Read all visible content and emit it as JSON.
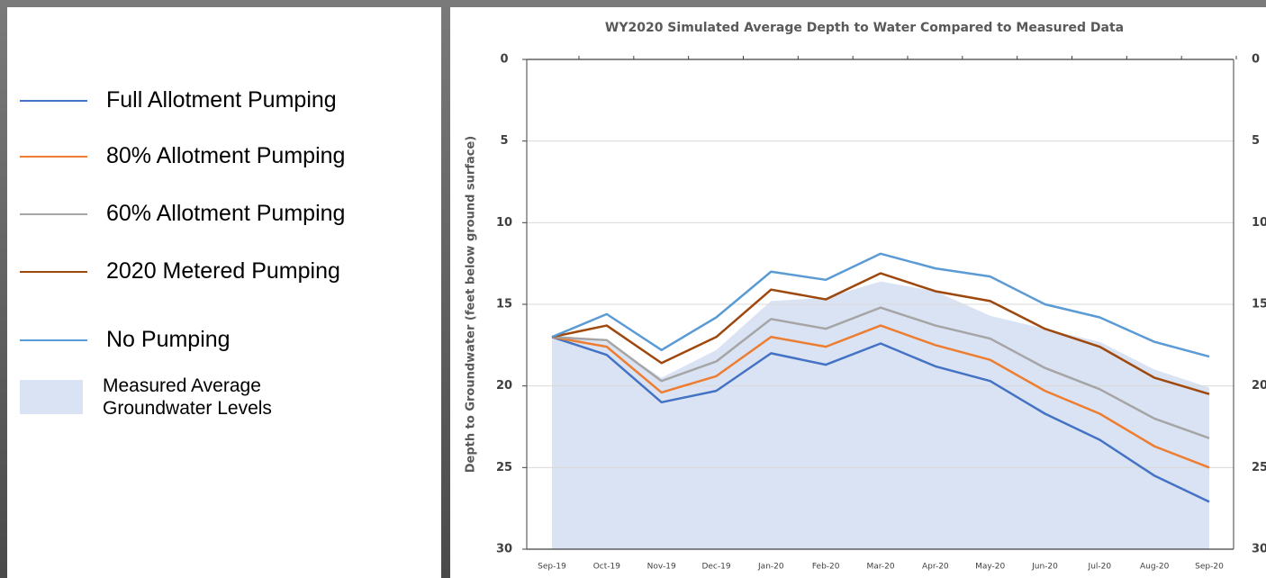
{
  "chart_data": {
    "type": "line",
    "title": "WY2020 Simulated Average Depth to Water Compared to Measured Data",
    "y_label": "Depth to Groundwater (feet below ground surface)",
    "categories": [
      "Sep-19",
      "Oct-19",
      "Nov-19",
      "Dec-19",
      "Jan-20",
      "Feb-20",
      "Mar-20",
      "Apr-20",
      "May-20",
      "Jun-20",
      "Jul-20",
      "Aug-20",
      "Sep-20"
    ],
    "ylim": [
      30,
      0
    ],
    "yticks": [
      0,
      5,
      10,
      15,
      20,
      25,
      30
    ],
    "grid": true,
    "right_axis": true,
    "series": [
      {
        "name": "Full Allotment Pumping",
        "color": "#4472c4",
        "values": [
          17.0,
          18.1,
          21.0,
          20.3,
          18.0,
          18.7,
          17.4,
          18.8,
          19.7,
          21.7,
          23.3,
          25.5,
          27.1
        ]
      },
      {
        "name": "80% Allotment Pumping",
        "color": "#ed7d31",
        "values": [
          17.0,
          17.6,
          20.4,
          19.4,
          17.0,
          17.6,
          16.3,
          17.5,
          18.4,
          20.3,
          21.7,
          23.7,
          25.0
        ]
      },
      {
        "name": "60% Allotment Pumping",
        "color": "#a5a5a5",
        "values": [
          17.0,
          17.2,
          19.7,
          18.5,
          15.9,
          16.5,
          15.2,
          16.3,
          17.1,
          18.9,
          20.2,
          22.0,
          23.2
        ]
      },
      {
        "name": "2020 Metered Pumping",
        "color": "#9e480e",
        "values": [
          17.0,
          16.3,
          18.6,
          17.0,
          14.1,
          14.7,
          13.1,
          14.2,
          14.8,
          16.5,
          17.6,
          19.5,
          20.5
        ]
      },
      {
        "name": "No Pumping",
        "color": "#5b9bd5",
        "values": [
          17.0,
          15.6,
          17.8,
          15.8,
          13.0,
          13.5,
          11.9,
          12.8,
          13.3,
          15.0,
          15.8,
          17.3,
          18.2
        ]
      }
    ],
    "area": {
      "name": "Measured Average Groundwater Levels",
      "color": "#dae3f3",
      "values": [
        17.0,
        17.3,
        19.5,
        17.8,
        14.8,
        14.6,
        13.6,
        14.2,
        15.7,
        16.5,
        17.3,
        19.0,
        20.1
      ]
    }
  }
}
